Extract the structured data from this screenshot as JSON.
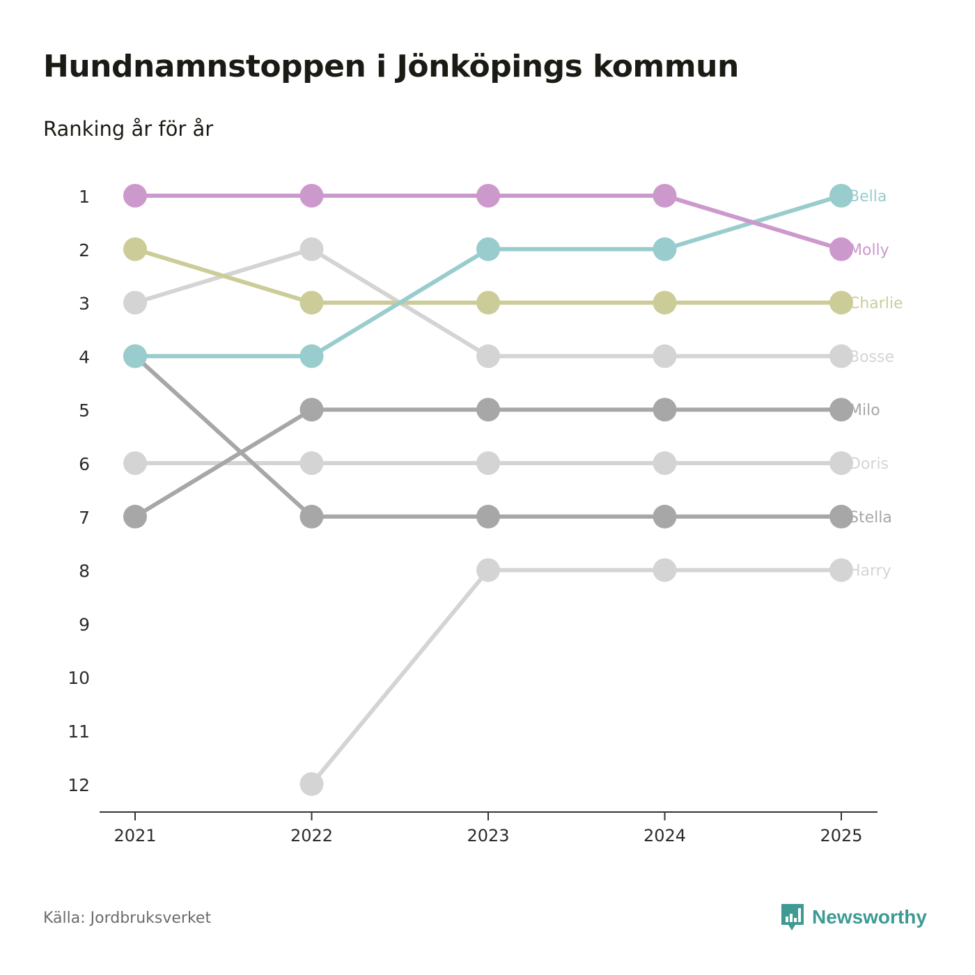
{
  "title": "Hundnamnstoppen i Jönköpings kommun",
  "subtitle": "Ranking år för år",
  "source": "Källa: Jordbruksverket",
  "brand": {
    "name": "Newsworthy",
    "icon": "newsworthy-logo-icon",
    "color": "#3e9a93"
  },
  "chart_data": {
    "type": "line",
    "title": "Hundnamnstoppen i Jönköpings kommun",
    "subtitle": "Ranking år för år",
    "xlabel": "",
    "ylabel": "",
    "x": [
      "2021",
      "2022",
      "2023",
      "2024",
      "2025"
    ],
    "y_ticks": [
      "1",
      "2",
      "3",
      "4",
      "5",
      "6",
      "7",
      "8",
      "9",
      "10",
      "11",
      "12"
    ],
    "ylim": [
      1,
      12
    ],
    "y_inverted": true,
    "grid": false,
    "series": [
      {
        "name": "Harry",
        "color": "#d4d4d4",
        "values": [
          null,
          12,
          8,
          8,
          8
        ]
      },
      {
        "name": "Doris",
        "color": "#d4d4d4",
        "values": [
          6,
          6,
          6,
          6,
          6
        ]
      },
      {
        "name": "Bosse",
        "color": "#d4d4d4",
        "values": [
          3,
          2,
          4,
          4,
          4
        ]
      },
      {
        "name": "Stella",
        "color": "#a7a7a7",
        "values": [
          4,
          7,
          7,
          7,
          7
        ]
      },
      {
        "name": "Milo",
        "color": "#a7a7a7",
        "values": [
          7,
          5,
          5,
          5,
          5
        ]
      },
      {
        "name": "Charlie",
        "color": "#cccc99",
        "values": [
          2,
          3,
          3,
          3,
          3
        ]
      },
      {
        "name": "Bella",
        "color": "#99cccc",
        "values": [
          4,
          4,
          2,
          2,
          1
        ]
      },
      {
        "name": "Molly",
        "color": "#cc99cc",
        "values": [
          1,
          1,
          1,
          1,
          2
        ]
      }
    ]
  }
}
